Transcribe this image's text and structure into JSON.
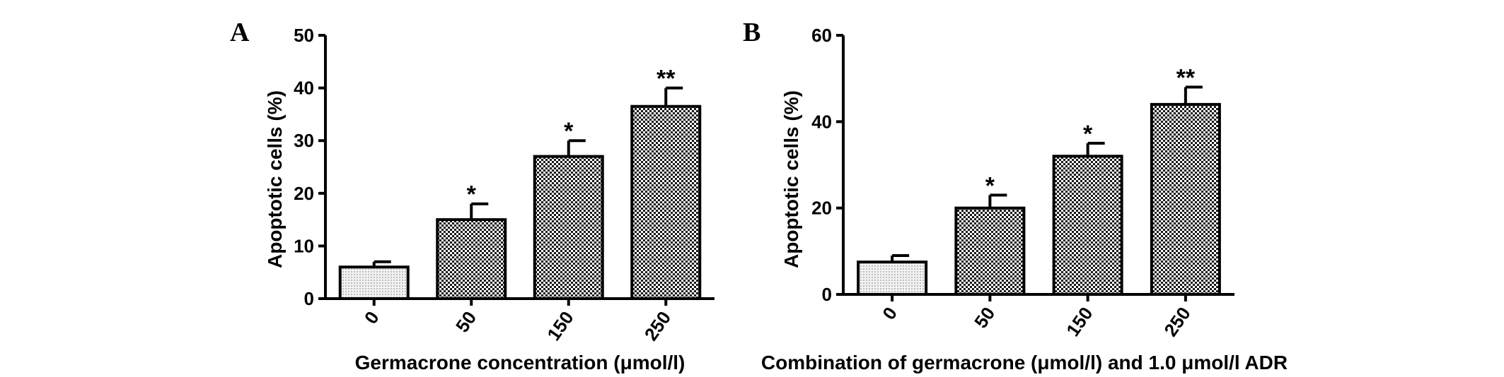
{
  "chart_data": [
    {
      "type": "bar",
      "panel_label": "A",
      "categories": [
        "0",
        "50",
        "150",
        "250"
      ],
      "values": [
        6,
        15,
        27,
        36.5
      ],
      "errors": [
        1,
        3,
        3,
        3.5
      ],
      "significance": [
        "",
        "*",
        "*",
        "**"
      ],
      "ylabel": "Apoptotic cells (%)",
      "xlabel": "Germacrone concentration (μmol/l)",
      "ylim": [
        0,
        50
      ],
      "yticks": [
        "0",
        "10",
        "20",
        "30",
        "40",
        "50"
      ],
      "grid": false,
      "bar_fills": [
        "light-dotted",
        "checkered",
        "checkered",
        "checkered"
      ]
    },
    {
      "type": "bar",
      "panel_label": "B",
      "categories": [
        "0",
        "50",
        "150",
        "250"
      ],
      "values": [
        7.5,
        20,
        32,
        44
      ],
      "errors": [
        1.5,
        3,
        3,
        4
      ],
      "significance": [
        "",
        "*",
        "*",
        "**"
      ],
      "ylabel": "Apoptotic cells (%)",
      "xlabel": "Combination of germacrone (μmol/l) and 1.0 μmol/l ADR",
      "ylim": [
        0,
        60
      ],
      "yticks": [
        "0",
        "20",
        "40",
        "60"
      ],
      "grid": false,
      "bar_fills": [
        "light-dotted",
        "checkered",
        "checkered",
        "checkered"
      ]
    }
  ],
  "colors": {
    "axis": "#000000",
    "bar_outline": "#000000",
    "checker_dark": "#1a1a1a",
    "dotted_light": "#d8d8d8"
  }
}
